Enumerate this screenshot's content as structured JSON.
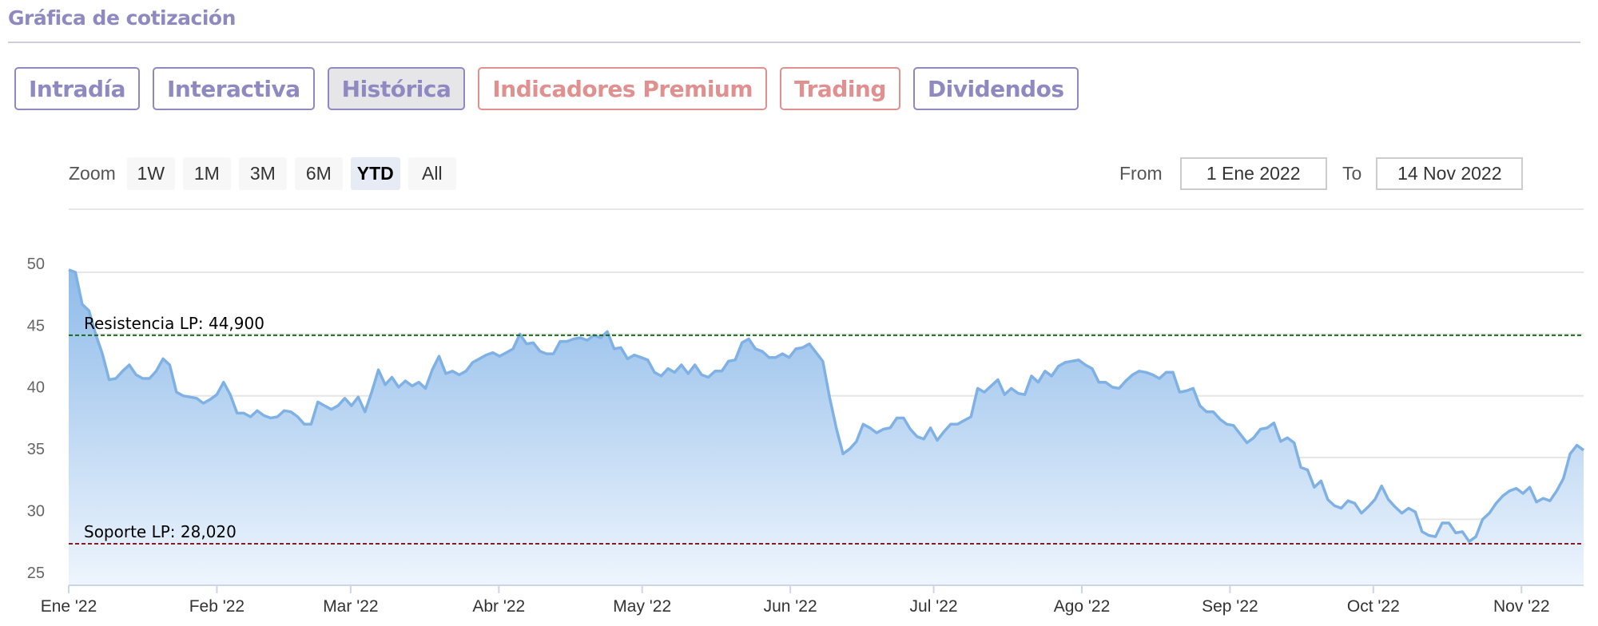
{
  "header": {
    "title": "Gráfica de cotización"
  },
  "tabs": [
    {
      "label": "Intradía",
      "style": "purple",
      "active": false
    },
    {
      "label": "Interactiva",
      "style": "purple",
      "active": false
    },
    {
      "label": "Histórica",
      "style": "purple",
      "active": true
    },
    {
      "label": "Indicadores Premium",
      "style": "red",
      "active": false
    },
    {
      "label": "Trading",
      "style": "red",
      "active": false
    },
    {
      "label": "Dividendos",
      "style": "purple",
      "active": false
    }
  ],
  "zoom": {
    "label": "Zoom",
    "buttons": [
      {
        "label": "1W",
        "selected": false
      },
      {
        "label": "1M",
        "selected": false
      },
      {
        "label": "3M",
        "selected": false
      },
      {
        "label": "6M",
        "selected": false
      },
      {
        "label": "YTD",
        "selected": true
      },
      {
        "label": "All",
        "selected": false
      }
    ]
  },
  "range": {
    "from_label": "From",
    "from_value": "1 Ene 2022",
    "to_label": "To",
    "to_value": "14 Nov 2022"
  },
  "colors": {
    "purple": "#8e89c0",
    "red": "#e0908f",
    "line": "#7fb1e4",
    "fill_top": "#8fbbe9",
    "fill_bottom": "#eef5fd",
    "resistance": "#1a6b1a",
    "support": "#8b1a1a"
  },
  "chart_data": {
    "type": "area",
    "x_start": "2022-01-01",
    "x_end": "2022-11-14",
    "ylim": [
      25,
      55
    ],
    "yticks": [
      25,
      30,
      35,
      40,
      45,
      50
    ],
    "xticks": [
      {
        "date": "2022-01-01",
        "label": "Ene '22"
      },
      {
        "date": "2022-02-01",
        "label": "Feb '22"
      },
      {
        "date": "2022-03-01",
        "label": "Mar '22"
      },
      {
        "date": "2022-04-01",
        "label": "Abr '22"
      },
      {
        "date": "2022-05-01",
        "label": "May '22"
      },
      {
        "date": "2022-06-01",
        "label": "Jun '22"
      },
      {
        "date": "2022-07-01",
        "label": "Jul '22"
      },
      {
        "date": "2022-08-01",
        "label": "Ago '22"
      },
      {
        "date": "2022-09-01",
        "label": "Sep '22"
      },
      {
        "date": "2022-10-01",
        "label": "Oct '22"
      },
      {
        "date": "2022-11-01",
        "label": "Nov '22"
      }
    ],
    "grid": true,
    "values": [
      50.2,
      50.0,
      47.4,
      46.9,
      45.0,
      43.4,
      41.3,
      41.4,
      42.0,
      42.5,
      41.7,
      41.4,
      41.4,
      42.0,
      43.0,
      42.5,
      40.3,
      40.0,
      39.9,
      39.8,
      39.4,
      39.7,
      40.1,
      41.1,
      40.1,
      38.6,
      38.6,
      38.3,
      38.8,
      38.4,
      38.2,
      38.3,
      38.8,
      38.7,
      38.3,
      37.7,
      37.7,
      39.5,
      39.2,
      38.9,
      39.2,
      39.8,
      39.2,
      39.9,
      38.7,
      40.3,
      42.1,
      40.9,
      41.5,
      40.7,
      41.2,
      40.8,
      41.1,
      40.6,
      42.1,
      43.2,
      41.8,
      42.0,
      41.7,
      42.0,
      42.7,
      43.0,
      43.3,
      43.5,
      43.2,
      43.5,
      43.8,
      45.0,
      44.2,
      44.3,
      43.6,
      43.4,
      43.4,
      44.4,
      44.4,
      44.6,
      44.7,
      44.5,
      44.9,
      44.7,
      45.2,
      43.8,
      43.9,
      43.0,
      43.3,
      43.1,
      42.9,
      41.9,
      41.6,
      42.2,
      41.9,
      42.5,
      41.8,
      42.5,
      41.7,
      41.5,
      42.0,
      42.0,
      42.8,
      42.9,
      44.3,
      44.6,
      43.8,
      43.6,
      43.1,
      43.1,
      43.4,
      43.1,
      43.8,
      43.9,
      44.2,
      43.5,
      42.8,
      39.9,
      37.4,
      35.3,
      35.7,
      36.3,
      37.7,
      37.4,
      37.0,
      37.3,
      37.4,
      38.2,
      38.2,
      37.3,
      36.7,
      36.5,
      37.4,
      36.4,
      37.1,
      37.7,
      37.7,
      38.0,
      38.3,
      40.6,
      40.3,
      40.8,
      41.3,
      40.1,
      40.6,
      40.2,
      40.1,
      41.6,
      41.1,
      42.0,
      41.6,
      42.4,
      42.7,
      42.8,
      42.9,
      42.5,
      42.2,
      41.1,
      41.1,
      40.7,
      40.6,
      41.2,
      41.7,
      42.0,
      41.9,
      41.7,
      41.4,
      41.9,
      41.9,
      40.3,
      40.4,
      40.6,
      39.2,
      38.7,
      38.7,
      38.1,
      37.7,
      37.6,
      36.9,
      36.2,
      36.6,
      37.3,
      37.4,
      37.8,
      36.3,
      36.6,
      36.2,
      34.2,
      34.0,
      32.6,
      33.1,
      31.6,
      31.1,
      30.9,
      31.5,
      31.3,
      30.5,
      31.0,
      31.6,
      32.7,
      31.6,
      31.0,
      30.5,
      30.9,
      30.6,
      29.0,
      28.7,
      28.6,
      29.7,
      29.7,
      28.9,
      29.0,
      28.2,
      28.6,
      30.0,
      30.5,
      31.3,
      31.9,
      32.3,
      32.5,
      32.1,
      32.6,
      31.4,
      31.7,
      31.5,
      32.3,
      33.3,
      35.3,
      36.0,
      35.6
    ],
    "annotations": [
      {
        "label": "Resistencia LP: 44,900",
        "value": 44.9,
        "kind": "resistance"
      },
      {
        "label": "Soporte LP: 28,020",
        "value": 28.02,
        "kind": "support"
      }
    ]
  }
}
